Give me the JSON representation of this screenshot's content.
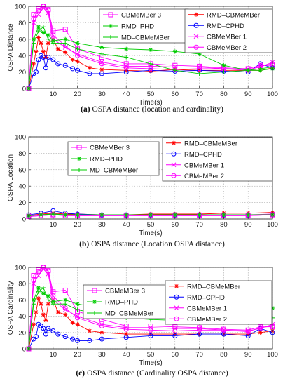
{
  "colors": {
    "RMD-CBMeMBer": "#ff0000",
    "RMD-CPHD": "#0000ff",
    "CBMeMBer 1": "#ff00ff",
    "CBMeMBer 2": "#ff00ff",
    "CBMeMBer 3": "#ff00ff",
    "RMD-PHD": "#00cc00",
    "MD-CBMeMBer": "#00cc00"
  },
  "chart_data": [
    {
      "type": "line",
      "caption_letter": "(a)",
      "caption_text": "OSPA distance (location and cardinality)",
      "xlabel": "Time(s)",
      "ylabel": "OSPA Distance",
      "xlim": [
        0,
        100
      ],
      "ylim": [
        0,
        100
      ],
      "xticks": [
        10,
        20,
        30,
        40,
        50,
        60,
        70,
        80,
        90,
        100
      ],
      "yticks": [
        0,
        20,
        40,
        60,
        80,
        100
      ],
      "grid": true,
      "legend_left": [
        {
          "name": "CBMeMBer 3",
          "series": "CBMeMBer 3"
        },
        {
          "name": "RMD–PHD",
          "series": "RMD-PHD"
        },
        {
          "name": "MD–CBMeMBer",
          "series": "MD-CBMeMBer"
        }
      ],
      "legend_right": [
        {
          "name": "RMD–CBMeMBer",
          "series": "RMD-CBMeMBer"
        },
        {
          "name": "RMD–CPHD",
          "series": "RMD-CPHD"
        },
        {
          "name": "CBMeMBer 1",
          "series": "CBMeMBer 1"
        },
        {
          "name": "CBMeMBer 2",
          "series": "CBMeMBer 2"
        }
      ],
      "series": [
        {
          "name": "RMD-CBMeMBer",
          "marker": "star",
          "x": [
            0,
            2,
            3,
            4,
            5,
            6,
            7,
            8,
            10,
            12,
            15,
            18,
            20,
            25,
            30,
            40,
            50,
            60,
            70,
            80,
            90,
            95,
            100
          ],
          "y": [
            0,
            30,
            45,
            62,
            55,
            45,
            38,
            55,
            60,
            48,
            44,
            35,
            33,
            25,
            23,
            22,
            21,
            23,
            22,
            22,
            22,
            22,
            25
          ]
        },
        {
          "name": "RMD-CPHD",
          "marker": "circle",
          "x": [
            0,
            2,
            3,
            4,
            5,
            6,
            7,
            8,
            10,
            12,
            15,
            18,
            20,
            25,
            30,
            40,
            50,
            60,
            70,
            80,
            90,
            95,
            100
          ],
          "y": [
            0,
            18,
            20,
            35,
            40,
            38,
            25,
            38,
            35,
            30,
            28,
            24,
            22,
            18,
            18,
            20,
            22,
            21,
            22,
            21,
            20,
            30,
            25
          ]
        },
        {
          "name": "CBMeMBer 1",
          "marker": "x",
          "x": [
            0,
            2,
            4,
            6,
            8,
            10,
            15,
            20,
            30,
            40,
            50,
            60,
            70,
            80,
            90,
            95,
            100
          ],
          "y": [
            0,
            80,
            90,
            98,
            92,
            60,
            50,
            42,
            32,
            27,
            27,
            26,
            26,
            24,
            23,
            26,
            32
          ]
        },
        {
          "name": "CBMeMBer 2",
          "marker": "circle",
          "x": [
            0,
            2,
            4,
            6,
            8,
            10,
            15,
            20,
            30,
            40,
            50,
            60,
            70,
            80,
            90,
            95,
            100
          ],
          "y": [
            0,
            85,
            95,
            100,
            95,
            65,
            52,
            40,
            30,
            25,
            24,
            23,
            24,
            24,
            22,
            27,
            30
          ]
        },
        {
          "name": "CBMeMBer 3",
          "marker": "square",
          "x": [
            0,
            2,
            4,
            6,
            8,
            10,
            15,
            20,
            30,
            40,
            50,
            60,
            70,
            80,
            90,
            95,
            100
          ],
          "y": [
            0,
            90,
            97,
            100,
            96,
            70,
            72,
            48,
            38,
            30,
            30,
            28,
            27,
            25,
            24,
            28,
            28
          ]
        },
        {
          "name": "RMD-PHD",
          "marker": "star",
          "x": [
            0,
            2,
            4,
            6,
            8,
            10,
            15,
            20,
            30,
            40,
            50,
            60,
            70,
            80,
            90,
            95,
            100
          ],
          "y": [
            0,
            60,
            75,
            68,
            65,
            58,
            60,
            55,
            50,
            48,
            47,
            45,
            42,
            28,
            22,
            22,
            24
          ]
        },
        {
          "name": "MD-CBMeMBer",
          "marker": "plus",
          "x": [
            0,
            2,
            4,
            6,
            8,
            10,
            15,
            20,
            30,
            40,
            50,
            60,
            70,
            80,
            90,
            95,
            100
          ],
          "y": [
            0,
            55,
            70,
            75,
            60,
            55,
            55,
            48,
            42,
            38,
            30,
            22,
            18,
            20,
            22,
            24,
            26
          ]
        }
      ]
    },
    {
      "type": "line",
      "caption_letter": "(b)",
      "caption_text": "OSPA distance (Location OSPA distance)",
      "xlabel": "Time(s)",
      "ylabel": "OSPA Location",
      "xlim": [
        0,
        100
      ],
      "ylim": [
        0,
        100
      ],
      "xticks": [
        10,
        20,
        30,
        40,
        50,
        60,
        70,
        80,
        90,
        100
      ],
      "yticks": [
        0,
        20,
        40,
        60,
        80,
        100
      ],
      "grid": true,
      "legend_left": [
        {
          "name": "CBMeMBer 3",
          "series": "CBMeMBer 3"
        },
        {
          "name": "RMD–PHD",
          "series": "RMD-PHD"
        },
        {
          "name": "MD–CBMeMBer",
          "series": "MD-CBMeMBer"
        }
      ],
      "legend_right": [
        {
          "name": "RMD–CBMeMBer",
          "series": "RMD-CBMeMBer"
        },
        {
          "name": "RMD–CPHD",
          "series": "RMD-CPHD"
        },
        {
          "name": "CBMeMBer 1",
          "series": "CBMeMBer 1"
        },
        {
          "name": "CBMeMBer 2",
          "series": "CBMeMBer 2"
        }
      ],
      "series": [
        {
          "name": "RMD-CBMeMBer",
          "marker": "star",
          "x": [
            0,
            5,
            10,
            15,
            20,
            30,
            40,
            50,
            60,
            70,
            80,
            90,
            100
          ],
          "y": [
            4,
            6,
            7,
            6,
            6,
            5,
            5,
            6,
            6,
            6,
            7,
            7,
            8
          ]
        },
        {
          "name": "RMD-CPHD",
          "marker": "circle",
          "x": [
            0,
            5,
            10,
            15,
            20,
            30,
            40,
            50,
            60,
            70,
            80,
            90,
            100
          ],
          "y": [
            5,
            7,
            10,
            7,
            6,
            5,
            5,
            5,
            5,
            5,
            5,
            5,
            5
          ]
        },
        {
          "name": "CBMeMBer 1",
          "marker": "x",
          "x": [
            0,
            5,
            10,
            15,
            20,
            30,
            40,
            50,
            60,
            70,
            80,
            90,
            100
          ],
          "y": [
            4,
            5,
            6,
            5,
            5,
            5,
            5,
            5,
            5,
            5,
            5,
            5,
            6
          ]
        },
        {
          "name": "CBMeMBer 2",
          "marker": "circle",
          "x": [
            0,
            5,
            10,
            15,
            20,
            30,
            40,
            50,
            60,
            70,
            80,
            90,
            100
          ],
          "y": [
            3,
            4,
            5,
            4,
            4,
            4,
            4,
            4,
            4,
            4,
            4,
            4,
            5
          ]
        },
        {
          "name": "CBMeMBer 3",
          "marker": "square",
          "x": [
            0,
            5,
            10,
            15,
            20,
            30,
            40,
            50,
            60,
            70,
            80,
            90,
            100
          ],
          "y": [
            3,
            4,
            5,
            4,
            4,
            4,
            4,
            4,
            4,
            4,
            4,
            4,
            5
          ]
        },
        {
          "name": "RMD-PHD",
          "marker": "star",
          "x": [
            0,
            5,
            10,
            15,
            20,
            30,
            40,
            50,
            60,
            70,
            80,
            90,
            100
          ],
          "y": [
            4,
            5,
            6,
            5,
            5,
            5,
            5,
            5,
            5,
            5,
            5,
            5,
            5
          ]
        },
        {
          "name": "MD-CBMeMBer",
          "marker": "plus",
          "x": [
            0,
            5,
            10,
            15,
            20,
            30,
            40,
            50,
            60,
            70,
            80,
            90,
            100
          ],
          "y": [
            4,
            5,
            6,
            5,
            5,
            5,
            5,
            5,
            5,
            5,
            5,
            5,
            5
          ]
        }
      ]
    },
    {
      "type": "line",
      "caption_letter": "(c)",
      "caption_text": "OSPA distance (Cardinality OSPA distance)",
      "xlabel": "Time(s)",
      "ylabel": "OSPA Cardinality",
      "xlim": [
        0,
        100
      ],
      "ylim": [
        0,
        100
      ],
      "xticks": [
        10,
        20,
        30,
        40,
        50,
        60,
        70,
        80,
        90,
        100
      ],
      "yticks": [
        0,
        20,
        40,
        60,
        80,
        100
      ],
      "grid": true,
      "legend_left": [
        {
          "name": "CBMeMBer 3",
          "series": "CBMeMBer 3"
        },
        {
          "name": "RMD–PHD",
          "series": "RMD-PHD"
        },
        {
          "name": "MD–CBMeMBer",
          "series": "MD-CBMeMBer"
        }
      ],
      "legend_right": [
        {
          "name": "RMD–CBMeMBer",
          "series": "RMD-CBMeMBer"
        },
        {
          "name": "RMD–CPHD",
          "series": "RMD-CPHD"
        },
        {
          "name": "CBMeMBer 1",
          "series": "CBMeMBer 1"
        },
        {
          "name": "CBMeMBer 2",
          "series": "CBMeMBer 2"
        }
      ],
      "series": [
        {
          "name": "RMD-CBMeMBer",
          "marker": "star",
          "x": [
            0,
            2,
            3,
            4,
            5,
            6,
            7,
            8,
            10,
            12,
            15,
            18,
            20,
            25,
            30,
            40,
            50,
            60,
            70,
            80,
            90,
            95,
            100
          ],
          "y": [
            0,
            30,
            45,
            62,
            55,
            42,
            35,
            55,
            60,
            45,
            42,
            32,
            30,
            22,
            20,
            18,
            18,
            18,
            18,
            18,
            18,
            20,
            22
          ]
        },
        {
          "name": "RMD-CPHD",
          "marker": "circle",
          "x": [
            0,
            2,
            3,
            4,
            5,
            6,
            7,
            8,
            10,
            12,
            15,
            18,
            20,
            25,
            30,
            40,
            50,
            60,
            70,
            80,
            90,
            95,
            100
          ],
          "y": [
            0,
            12,
            15,
            30,
            28,
            25,
            18,
            25,
            22,
            18,
            15,
            12,
            10,
            10,
            12,
            14,
            16,
            16,
            18,
            18,
            16,
            25,
            20
          ]
        },
        {
          "name": "CBMeMBer 1",
          "marker": "x",
          "x": [
            0,
            2,
            4,
            6,
            8,
            10,
            15,
            20,
            30,
            40,
            50,
            60,
            70,
            80,
            90,
            95,
            100
          ],
          "y": [
            0,
            80,
            90,
            98,
            92,
            60,
            48,
            40,
            30,
            26,
            26,
            25,
            25,
            23,
            22,
            25,
            30
          ]
        },
        {
          "name": "CBMeMBer 2",
          "marker": "circle",
          "x": [
            0,
            2,
            4,
            6,
            8,
            10,
            15,
            20,
            30,
            40,
            50,
            60,
            70,
            80,
            90,
            95,
            100
          ],
          "y": [
            0,
            85,
            95,
            100,
            95,
            65,
            50,
            38,
            28,
            24,
            23,
            22,
            23,
            23,
            21,
            26,
            28
          ]
        },
        {
          "name": "CBMeMBer 3",
          "marker": "square",
          "x": [
            0,
            2,
            4,
            6,
            8,
            10,
            15,
            20,
            30,
            40,
            50,
            60,
            70,
            80,
            90,
            95,
            100
          ],
          "y": [
            0,
            90,
            97,
            100,
            96,
            70,
            72,
            46,
            36,
            28,
            28,
            27,
            26,
            24,
            23,
            27,
            27
          ]
        },
        {
          "name": "RMD-PHD",
          "marker": "star",
          "x": [
            0,
            2,
            4,
            6,
            8,
            10,
            15,
            20,
            30,
            40,
            50,
            60,
            70,
            80,
            90,
            95,
            100
          ],
          "y": [
            0,
            60,
            75,
            68,
            65,
            58,
            60,
            55,
            50,
            48,
            46,
            45,
            44,
            44,
            45,
            46,
            50
          ]
        },
        {
          "name": "MD-CBMeMBer",
          "marker": "plus",
          "x": [
            0,
            2,
            4,
            6,
            8,
            10,
            15,
            20,
            30,
            40,
            50,
            60,
            70,
            80,
            90,
            95,
            100
          ],
          "y": [
            0,
            55,
            70,
            75,
            60,
            55,
            55,
            48,
            42,
            38,
            36,
            35,
            34,
            34,
            35,
            36,
            38
          ]
        }
      ]
    }
  ]
}
